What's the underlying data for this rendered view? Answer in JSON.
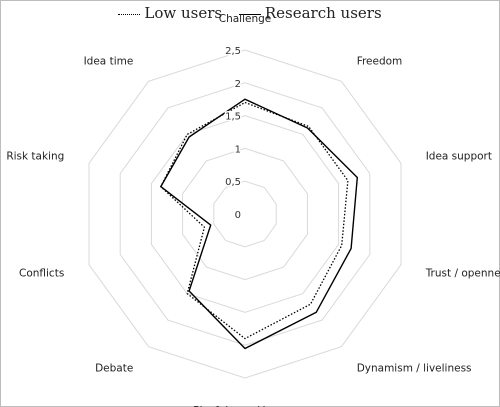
{
  "chart_data": {
    "type": "radar",
    "title": "",
    "categories": [
      "Challenge",
      "Freedom",
      "Idea support",
      "Trust / openness",
      "Dynamism / liveliness",
      "Playfulness / humor",
      "Debate",
      "Conflicts",
      "Risk taking",
      "Idea time"
    ],
    "series": [
      {
        "name": "Low users",
        "line_style": "dotted",
        "color": "#000000",
        "values": [
          1.7,
          1.65,
          1.65,
          1.55,
          1.7,
          1.9,
          1.5,
          0.65,
          1.35,
          1.5
        ]
      },
      {
        "name": "Research users",
        "line_style": "solid",
        "color": "#000000",
        "values": [
          1.75,
          1.62,
          1.8,
          1.7,
          1.85,
          2.05,
          1.45,
          0.55,
          1.35,
          1.45
        ]
      }
    ],
    "rlim": [
      0,
      2.5
    ],
    "ticks": [
      0,
      0.5,
      1,
      1.5,
      2,
      2.5
    ],
    "tick_labels": [
      "0",
      "0,5",
      "1",
      "1,5",
      "2",
      "2,5"
    ],
    "grid": true,
    "grid_color": "#d9d9d9",
    "legend_position": "top"
  }
}
